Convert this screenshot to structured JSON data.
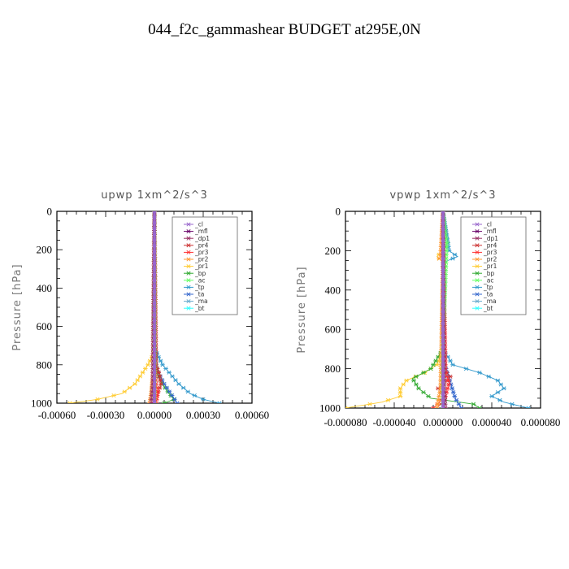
{
  "figure_title": "044_f2c_gammashear  BUDGET at295E,0N",
  "colors": {
    "_cl": "#9966cc",
    "_mfl": "#660066",
    "_dp1": "#993366",
    "_pr4": "#cc3333",
    "_pr3": "#ff3333",
    "_pr2": "#ff9933",
    "_pr1": "#ffcc33",
    "_bp": "#33aa33",
    "_ac": "#66ff66",
    "_tp": "#3399cc",
    "_ta": "#3366cc",
    "_ma": "#66aacc",
    "_bt": "#33ffff"
  },
  "chart_data": [
    {
      "type": "line",
      "title": "upwp   1xm^2/s^3",
      "ylabel": "Pressure  [hPa]",
      "xlim": [
        -0.0006,
        0.0006
      ],
      "ylim": [
        1000,
        0
      ],
      "xticks": [
        -0.0006,
        -0.0003,
        0.0,
        0.0003,
        0.0006
      ],
      "xtick_labels": [
        "-0.00060",
        "-0.00030",
        "0.00000",
        "0.00030",
        "0.00060"
      ],
      "yticks": [
        0,
        200,
        400,
        600,
        800,
        1000
      ],
      "ytick_labels": [
        "0",
        "200",
        "400",
        "600",
        "800",
        "1000"
      ],
      "legend": [
        "_cl",
        "_mfl",
        "_dp1",
        "_pr4",
        "_pr3",
        "_pr2",
        "_pr1",
        "_bp",
        "_ac",
        "_tp",
        "_ta",
        "_ma",
        "_bt"
      ],
      "legend_position": "top-right",
      "series": [
        {
          "name": "_pr1",
          "y": [
            0,
            700,
            750,
            800,
            850,
            900,
            950,
            980,
            1000
          ],
          "x": [
            0,
            0,
            -1e-05,
            -4e-05,
            -8e-05,
            -0.00012,
            -0.0002,
            -0.00035,
            -0.00052
          ]
        },
        {
          "name": "_bp",
          "y": [
            0,
            700,
            800,
            850,
            900,
            950,
            980,
            1000
          ],
          "x": [
            0,
            0,
            1e-05,
            2e-05,
            5e-05,
            9e-05,
            0.00012,
            6e-05
          ]
        },
        {
          "name": "_tp",
          "y": [
            0,
            700,
            750,
            800,
            850,
            900,
            950,
            980,
            1000
          ],
          "x": [
            0,
            0,
            2e-05,
            5e-05,
            0.0001,
            0.00015,
            0.00022,
            0.0003,
            0.0004
          ]
        },
        {
          "name": "_ta",
          "y": [
            0,
            750,
            800,
            850,
            900,
            950,
            1000
          ],
          "x": [
            0,
            0,
            1e-05,
            3e-05,
            6e-05,
            0.0001,
            0.00014
          ]
        },
        {
          "name": "_pr4",
          "y": [
            0,
            800,
            850,
            900,
            950,
            1000
          ],
          "x": [
            0,
            1e-05,
            3e-05,
            4e-05,
            2e-05,
            -1e-05
          ]
        },
        {
          "name": "_pr3",
          "y": [
            0,
            800,
            900,
            950,
            1000
          ],
          "x": [
            0,
            0,
            1e-05,
            2e-05,
            1e-05
          ]
        },
        {
          "name": "_pr2",
          "y": [
            0,
            850,
            950,
            1000
          ],
          "x": [
            0,
            -1e-05,
            -2e-05,
            -3e-05
          ]
        },
        {
          "name": "_ac",
          "y": [
            0,
            1000
          ],
          "x": [
            0,
            0
          ]
        },
        {
          "name": "_dp1",
          "y": [
            0,
            900,
            1000
          ],
          "x": [
            0,
            -1e-05,
            -2e-05
          ]
        },
        {
          "name": "_mfl",
          "y": [
            0,
            1000
          ],
          "x": [
            0,
            0
          ]
        },
        {
          "name": "_cl",
          "y": [
            0,
            1000
          ],
          "x": [
            0,
            0
          ]
        }
      ]
    },
    {
      "type": "line",
      "title": "vpwp   1xm^2/s^3",
      "ylabel": "Pressure  [hPa]",
      "xlim": [
        -8e-05,
        8e-05
      ],
      "ylim": [
        1000,
        0
      ],
      "xticks": [
        -8e-05,
        -4e-05,
        0.0,
        4e-05,
        8e-05
      ],
      "xtick_labels": [
        "-0.000080",
        "-0.000040",
        "0.000000",
        "0.000040",
        "0.000080"
      ],
      "yticks": [
        0,
        200,
        400,
        600,
        800,
        1000
      ],
      "ytick_labels": [
        "0",
        "200",
        "400",
        "600",
        "800",
        "1000"
      ],
      "legend": [
        "_cl",
        "_mfl",
        "_dp1",
        "_pr4",
        "_pr3",
        "_pr2",
        "_pr1",
        "_bp",
        "_ac",
        "_tp",
        "_ta",
        "_ma",
        "_bt"
      ],
      "legend_position": "top-right",
      "series": [
        {
          "name": "_pr1",
          "y": [
            0,
            200,
            230,
            260,
            700,
            780,
            820,
            860,
            900,
            940,
            970,
            1000
          ],
          "x": [
            0,
            0,
            -5e-06,
            0,
            0,
            -5e-06,
            -1.5e-05,
            -3e-05,
            -3.5e-05,
            -3.5e-05,
            -5e-05,
            -8e-05
          ]
        },
        {
          "name": "_bp",
          "y": [
            0,
            130,
            160,
            200,
            700,
            800,
            850,
            900,
            950,
            980,
            1000
          ],
          "x": [
            0,
            3e-06,
            4e-06,
            0,
            0,
            -1e-05,
            -2.5e-05,
            -2e-05,
            -1e-05,
            2.5e-05,
            3e-05
          ]
        },
        {
          "name": "_tp",
          "y": [
            0,
            200,
            230,
            260,
            700,
            780,
            820,
            860,
            900,
            940,
            970,
            1000
          ],
          "x": [
            0,
            5e-06,
            1.2e-05,
            0,
            0,
            8e-06,
            3e-05,
            4.5e-05,
            5e-05,
            4e-05,
            5e-05,
            7e-05
          ]
        },
        {
          "name": "_ta",
          "y": [
            0,
            750,
            850,
            950,
            1000
          ],
          "x": [
            0,
            0,
            5e-06,
            1e-05,
            1.5e-05
          ]
        },
        {
          "name": "_pr4",
          "y": [
            0,
            800,
            840,
            870,
            900,
            950,
            1000
          ],
          "x": [
            0,
            0,
            6e-06,
            2e-06,
            -4e-06,
            3e-06,
            -5e-06
          ]
        },
        {
          "name": "_pr3",
          "y": [
            0,
            820,
            870,
            940,
            1000
          ],
          "x": [
            0,
            2e-06,
            5e-06,
            2e-06,
            -8e-06
          ]
        },
        {
          "name": "_pr2",
          "y": [
            0,
            220,
            240,
            260,
            900,
            1000
          ],
          "x": [
            0,
            -2e-06,
            -3e-06,
            0,
            -2e-06,
            -5e-06
          ]
        },
        {
          "name": "_ac",
          "y": [
            0,
            130,
            160,
            700,
            1000
          ],
          "x": [
            0,
            2e-06,
            3e-06,
            0,
            0
          ]
        },
        {
          "name": "_dp1",
          "y": [
            0,
            900,
            1000
          ],
          "x": [
            0,
            1e-06,
            2e-06
          ]
        },
        {
          "name": "_mfl",
          "y": [
            0,
            1000
          ],
          "x": [
            0,
            0
          ]
        },
        {
          "name": "_cl",
          "y": [
            0,
            1000
          ],
          "x": [
            0,
            0
          ]
        }
      ]
    }
  ]
}
